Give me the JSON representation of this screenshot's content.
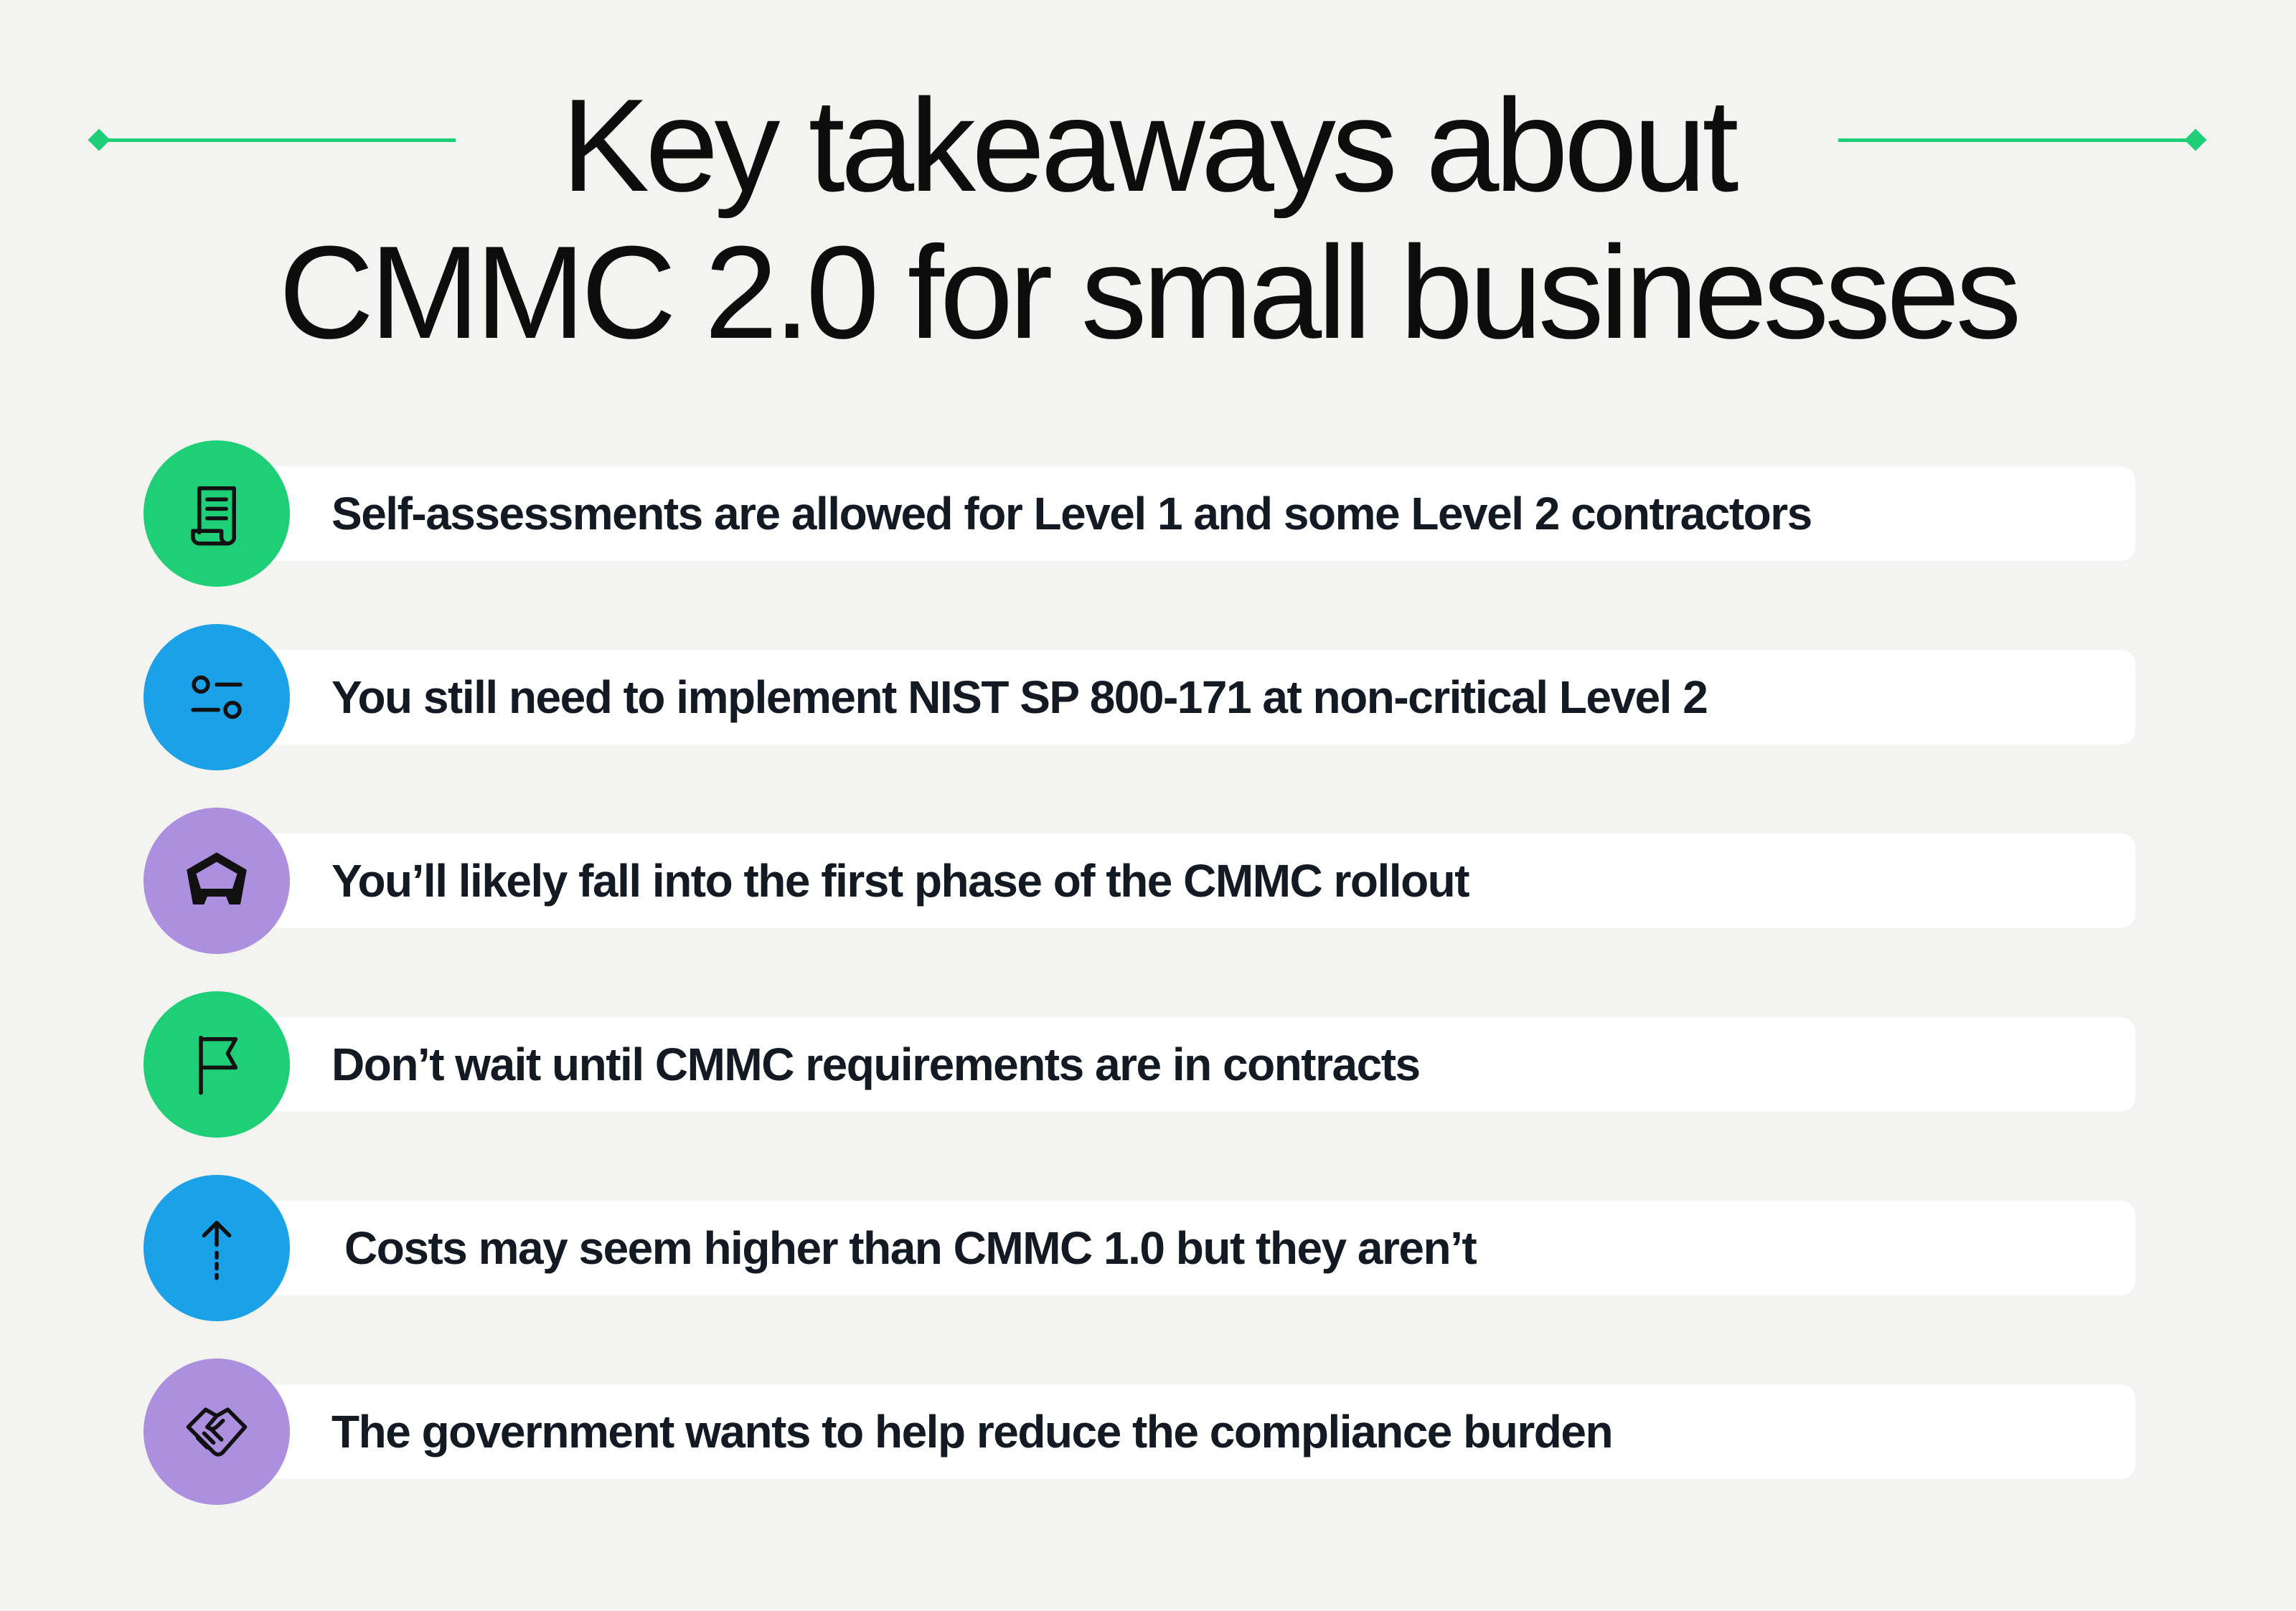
{
  "page": {
    "title_line1": "Key takeaways about",
    "title_line2": "CMMC 2.0 for small businesses"
  },
  "colors": {
    "background": "#f3f4f0",
    "accent_green": "#1fcf78",
    "blue": "#1aa1e8",
    "purple": "#ad8fe0",
    "text": "#141a24"
  },
  "takeaways": [
    {
      "text": "Self-assessments are allowed for Level 1 and some Level 2 contractors",
      "icon": "document-scroll-icon",
      "color": "green"
    },
    {
      "text": "You still need to implement NIST SP 800-171 at non-critical Level 2",
      "icon": "toggle-settings-icon",
      "color": "blue"
    },
    {
      "text": "You’ll likely fall into the first phase of the CMMC rollout",
      "icon": "pentagon-shield-icon",
      "color": "purple"
    },
    {
      "text": "Don’t wait until CMMC requirements are in contracts",
      "icon": "flag-icon",
      "color": "green"
    },
    {
      "text": "Costs may seem higher than CMMC 1.0 but they aren’t",
      "icon": "arrow-up-icon",
      "color": "blue"
    },
    {
      "text": "The government wants to help reduce the compliance burden",
      "icon": "handshake-icon",
      "color": "purple"
    }
  ]
}
